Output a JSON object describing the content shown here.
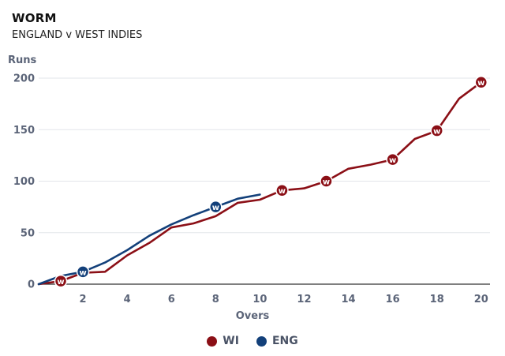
{
  "chart_data": {
    "type": "line",
    "title": "WORM",
    "subtitle": "ENGLAND v WEST INDIES",
    "xlabel": "Overs",
    "ylabel": "Runs",
    "xlim": [
      0,
      20.4
    ],
    "ylim": [
      0,
      200
    ],
    "xticks": [
      2,
      4,
      6,
      8,
      10,
      12,
      14,
      16,
      18,
      20
    ],
    "yticks": [
      0,
      50,
      100,
      150,
      200
    ],
    "grid": true,
    "legend_position": "bottom-center",
    "wicket_label": "W",
    "series": [
      {
        "name": "WI",
        "color": "#8b0f16",
        "x": [
          0,
          1,
          2,
          3,
          4,
          5,
          6,
          7,
          8,
          9,
          10,
          11,
          12,
          13,
          14,
          15,
          16,
          17,
          18,
          19,
          20
        ],
        "values": [
          0,
          3,
          11,
          12,
          28,
          40,
          55,
          59,
          66,
          79,
          82,
          91,
          93,
          100,
          112,
          116,
          121,
          141,
          149,
          180,
          196
        ],
        "wickets_x": [
          1,
          11,
          13,
          16,
          18,
          20
        ]
      },
      {
        "name": "ENG",
        "color": "#13407a",
        "x": [
          0,
          1,
          2,
          3,
          4,
          5,
          6,
          7,
          8,
          9,
          10
        ],
        "values": [
          0,
          8,
          12,
          21,
          33,
          47,
          58,
          67,
          75,
          83,
          87
        ],
        "wickets_x": [
          2,
          8
        ]
      }
    ]
  }
}
